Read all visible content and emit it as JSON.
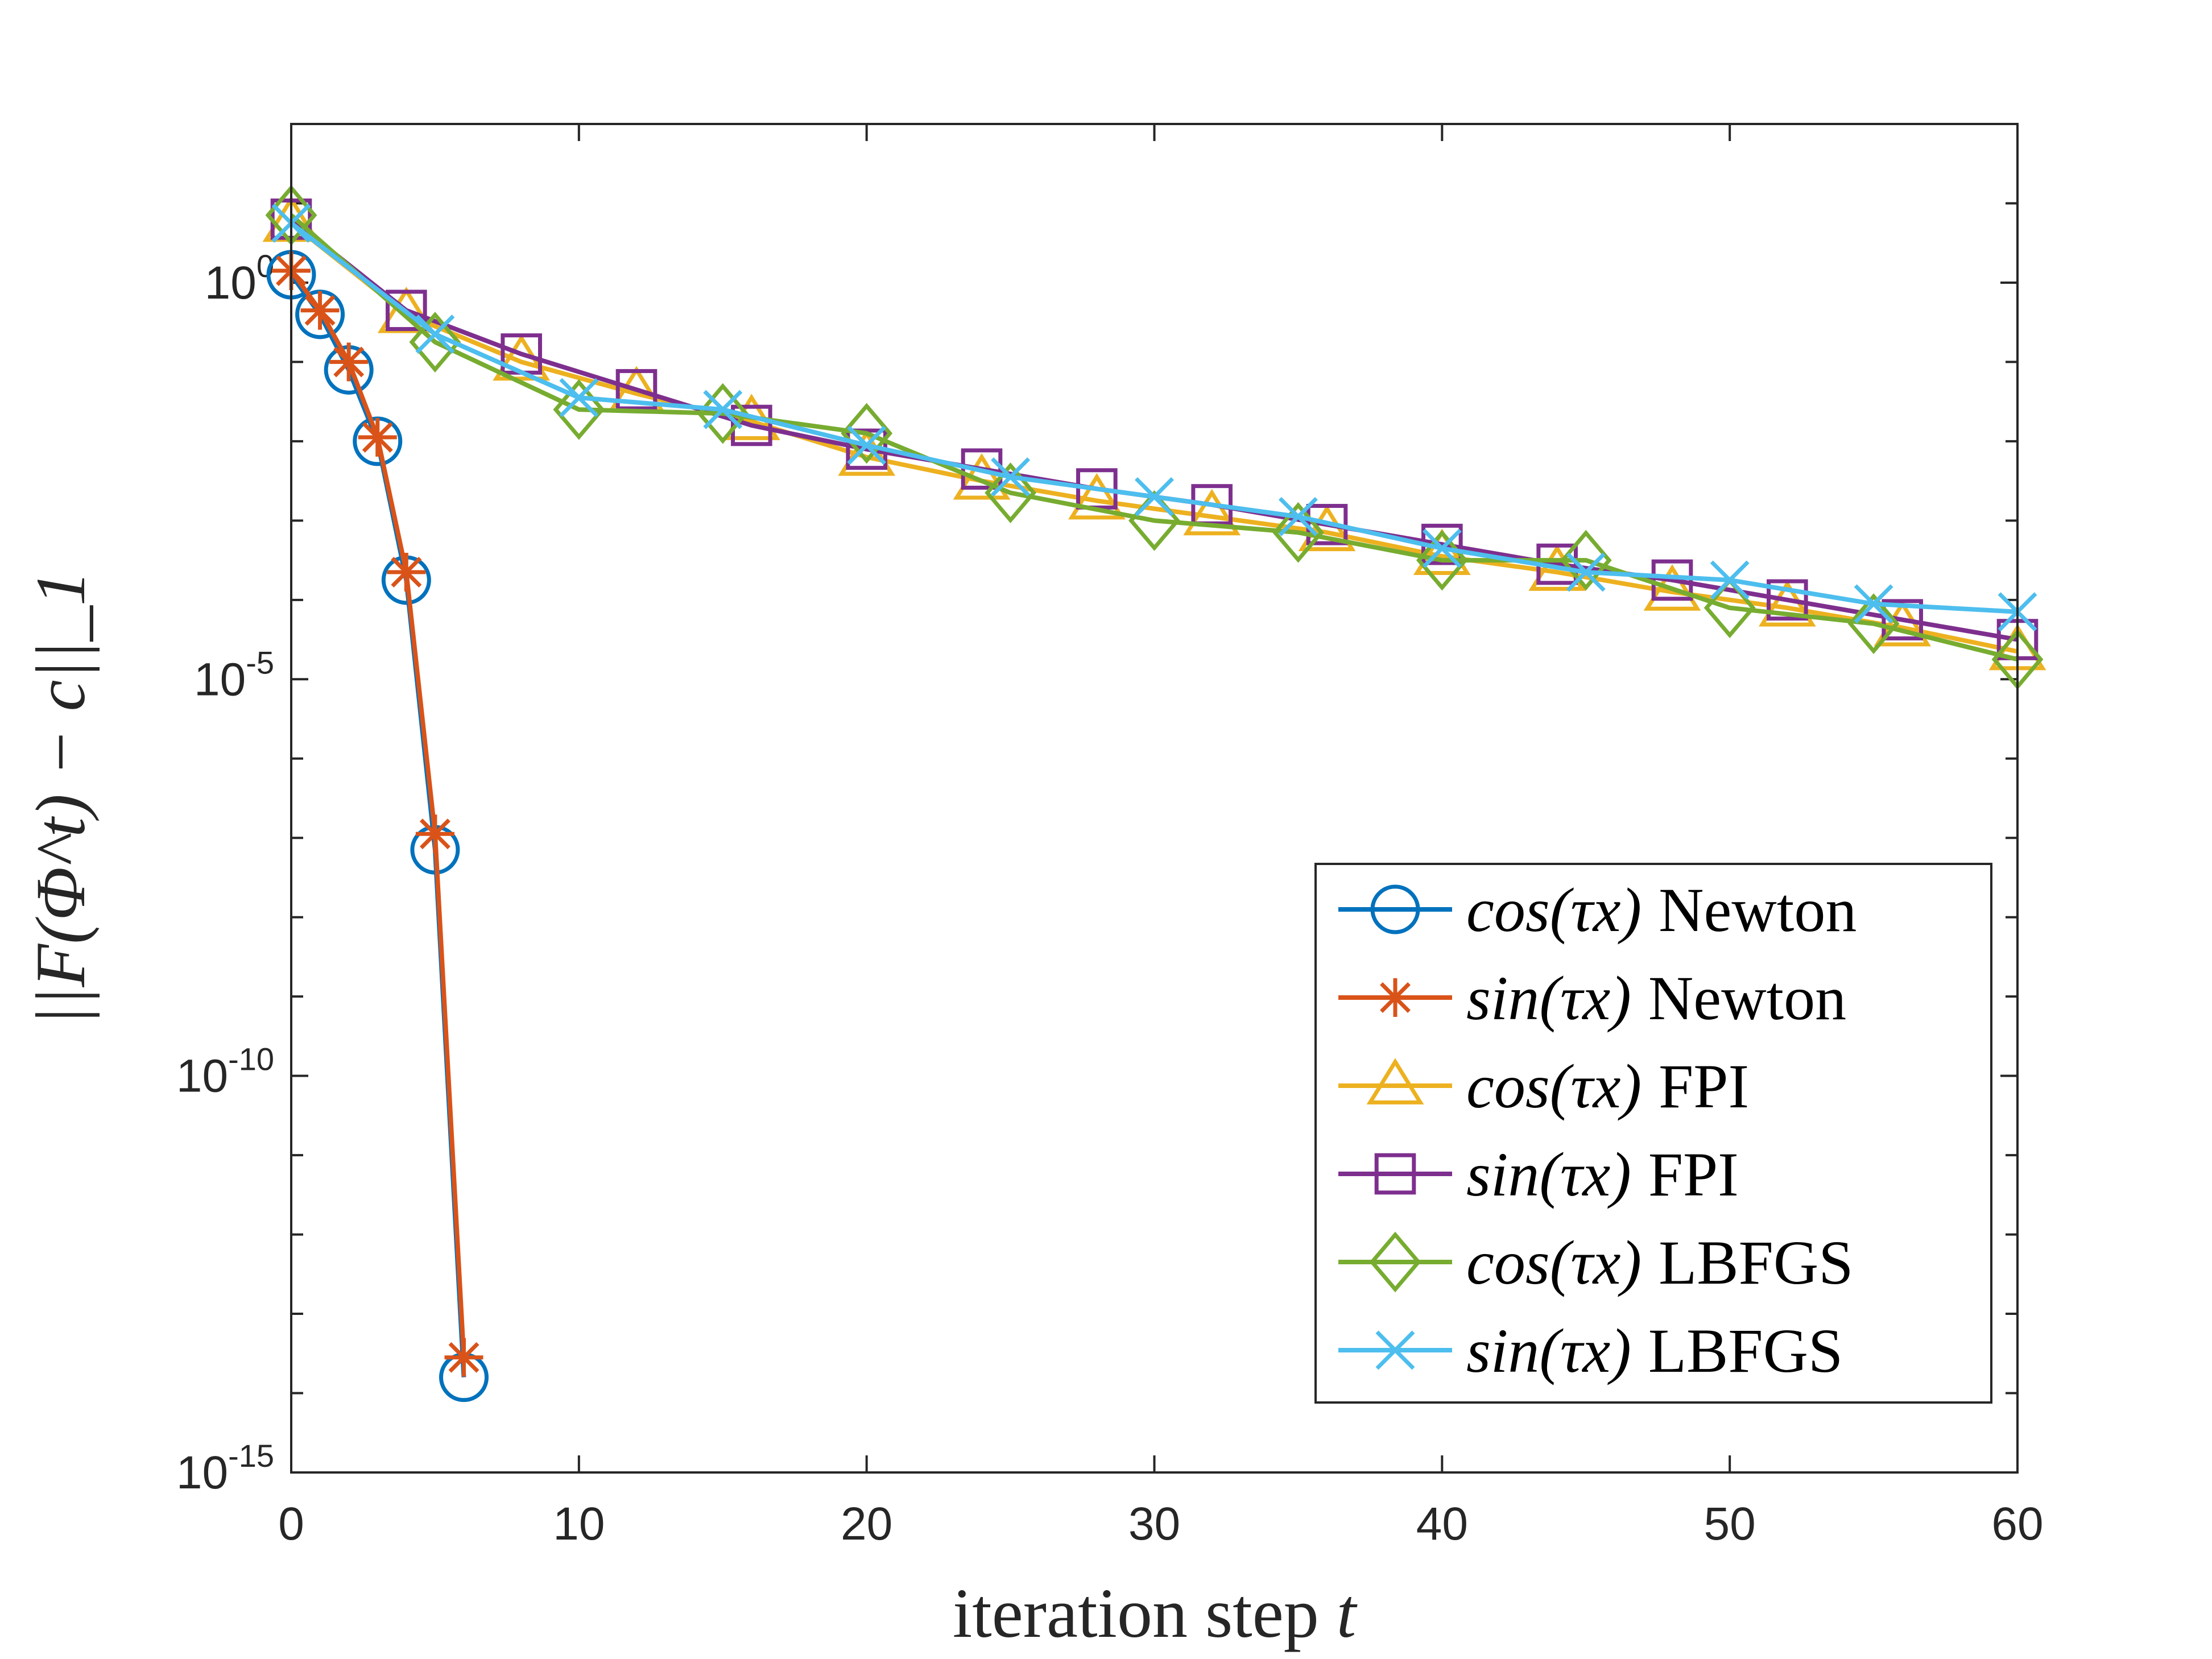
{
  "chart_data": {
    "type": "line",
    "yscale": "log",
    "xlabel": "iteration step",
    "xlabel_var": "t",
    "ylabel": "||F(Φ^t) − c||_1",
    "xlim": [
      0,
      60
    ],
    "ylim_exp": [
      -15,
      2
    ],
    "xticks": [
      0,
      10,
      20,
      30,
      40,
      50,
      60
    ],
    "xtick_labels": [
      "0",
      "10",
      "20",
      "30",
      "40",
      "50",
      "60"
    ],
    "yticks": [
      {
        "base": "10",
        "exp": "0",
        "value_exp": 0
      },
      {
        "base": "10",
        "exp": "-5",
        "value_exp": -5
      },
      {
        "base": "10",
        "exp": "-10",
        "value_exp": -10
      },
      {
        "base": "10",
        "exp": "-15",
        "value_exp": -15
      }
    ],
    "legend_position": "lower-right",
    "series": [
      {
        "name": "cos(τx) Newton",
        "math": "cos(τx)",
        "method": "Newton",
        "color": "#0072BD",
        "marker": "circle",
        "x": [
          0,
          1,
          2,
          3,
          4,
          5,
          6
        ],
        "y_exp": [
          0.1,
          -0.4,
          -1.1,
          -2.0,
          -3.75,
          -7.15,
          -13.8
        ]
      },
      {
        "name": "sin(τx) Newton",
        "math": "sin(τx)",
        "method": "Newton",
        "color": "#D95319",
        "marker": "asterisk",
        "x": [
          0,
          1,
          2,
          3,
          4,
          5,
          6
        ],
        "y_exp": [
          0.15,
          -0.35,
          -1.0,
          -1.95,
          -3.65,
          -6.95,
          -13.55
        ]
      },
      {
        "name": "cos(τx) FPI",
        "math": "cos(τx)",
        "method": "FPI",
        "color": "#EDB120",
        "marker": "triangle",
        "x": [
          0,
          4,
          8,
          12,
          16,
          20,
          24,
          28,
          32,
          36,
          40,
          44,
          48,
          52,
          56,
          60
        ],
        "y_exp": [
          0.75,
          -0.4,
          -1.0,
          -1.4,
          -1.75,
          -2.2,
          -2.5,
          -2.75,
          -2.95,
          -3.15,
          -3.45,
          -3.65,
          -3.9,
          -4.1,
          -4.35,
          -4.65
        ]
      },
      {
        "name": "sin(τx) FPI",
        "math": "sin(τx)",
        "method": "FPI",
        "color": "#7E2F8E",
        "marker": "square",
        "x": [
          0,
          4,
          8,
          12,
          16,
          20,
          24,
          28,
          32,
          36,
          40,
          44,
          48,
          52,
          56,
          60
        ],
        "y_exp": [
          0.8,
          -0.35,
          -0.9,
          -1.35,
          -1.8,
          -2.1,
          -2.35,
          -2.6,
          -2.8,
          -3.05,
          -3.3,
          -3.55,
          -3.75,
          -4.0,
          -4.25,
          -4.5
        ]
      },
      {
        "name": "cos(τx) LBFGS",
        "math": "cos(τx)",
        "method": "LBFGS",
        "color": "#77AC30",
        "marker": "diamond",
        "x": [
          0,
          5,
          10,
          15,
          20,
          25,
          30,
          35,
          40,
          45,
          50,
          55,
          60
        ],
        "y_exp": [
          0.85,
          -0.75,
          -1.6,
          -1.65,
          -1.9,
          -2.65,
          -3.0,
          -3.15,
          -3.5,
          -3.5,
          -4.1,
          -4.3,
          -4.75
        ]
      },
      {
        "name": "sin(τx) LBFGS",
        "math": "sin(τx)",
        "method": "LBFGS",
        "color": "#4DBEEE",
        "marker": "x",
        "x": [
          0,
          5,
          10,
          15,
          20,
          25,
          30,
          35,
          40,
          45,
          50,
          55,
          60
        ],
        "y_exp": [
          0.75,
          -0.65,
          -1.45,
          -1.6,
          -2.05,
          -2.45,
          -2.7,
          -2.95,
          -3.35,
          -3.65,
          -3.75,
          -4.05,
          -4.15
        ]
      }
    ]
  }
}
